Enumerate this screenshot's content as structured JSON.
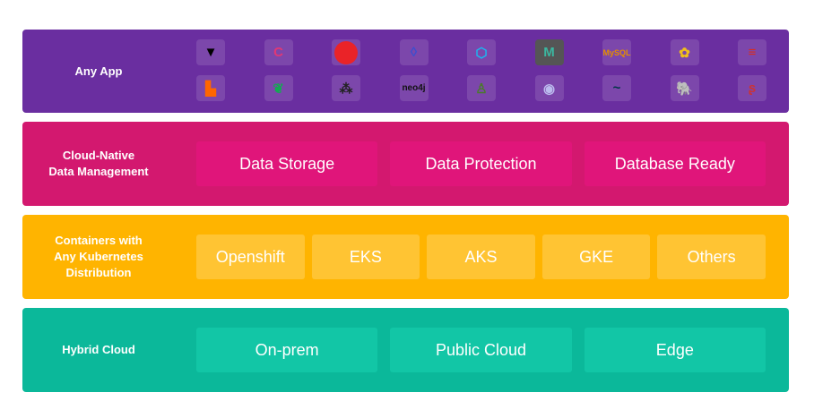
{
  "colors": {
    "app": "#6a2ea0",
    "data": "#d3186f",
    "containers": "#ffb400",
    "cloud": "#0bb89a"
  },
  "rows": [
    {
      "label": "Any App",
      "icons": [
        "vault-icon",
        "consul-icon",
        "couchbase-icon",
        "fauna-icon",
        "hexagon-db-icon",
        "meteor-icon",
        "mysql-icon",
        "elastic-icon",
        "redis-icon",
        "rabbitmq-icon",
        "mongodb-icon",
        "kafka-icon",
        "neo4j-icon",
        "soldier-icon",
        "cassandra-icon",
        "mariadb-icon",
        "postgresql-icon",
        "sql-server-icon"
      ]
    },
    {
      "label": "Cloud-Native\nData Management",
      "boxes": [
        "Data Storage",
        "Data Protection",
        "Database Ready"
      ]
    },
    {
      "label": "Containers with\nAny Kubernetes\nDistribution",
      "boxes": [
        "Openshift",
        "EKS",
        "AKS",
        "GKE",
        "Others"
      ]
    },
    {
      "label": "Hybrid Cloud",
      "boxes": [
        "On-prem",
        "Public Cloud",
        "Edge"
      ]
    }
  ]
}
